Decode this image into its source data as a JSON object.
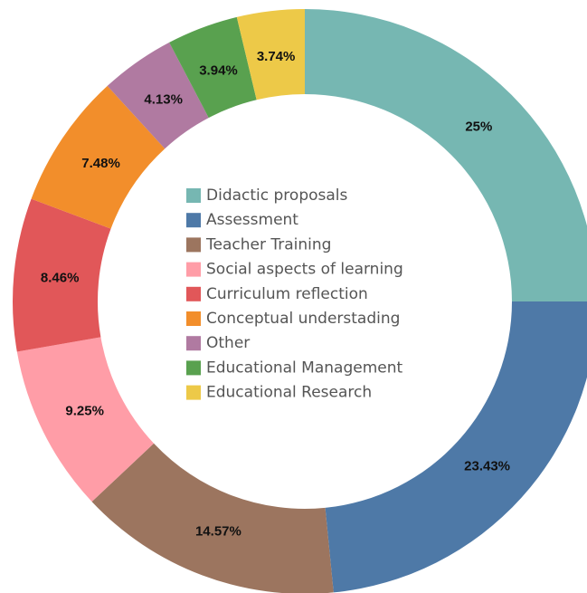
{
  "chart_data": {
    "type": "pie",
    "categories": [
      "Didactic proposals",
      "Assessment",
      "Teacher Training",
      "Social aspects of learning",
      "Curriculum reflection",
      "Conceptual understading",
      "Other",
      "Educational Management",
      "Educational Research"
    ],
    "values": [
      25,
      23.43,
      14.57,
      9.25,
      8.46,
      7.48,
      4.13,
      3.94,
      3.74
    ],
    "value_labels": [
      "25%",
      "23.43%",
      "14.57%",
      "9.25%",
      "8.46%",
      "7.48%",
      "4.13%",
      "3.94%",
      "3.74%"
    ],
    "colors": [
      "#76b7b2",
      "#4e79a7",
      "#9c755f",
      "#ff9da7",
      "#e15759",
      "#f28e2b",
      "#b07aa1",
      "#59a14f",
      "#edc948"
    ]
  }
}
